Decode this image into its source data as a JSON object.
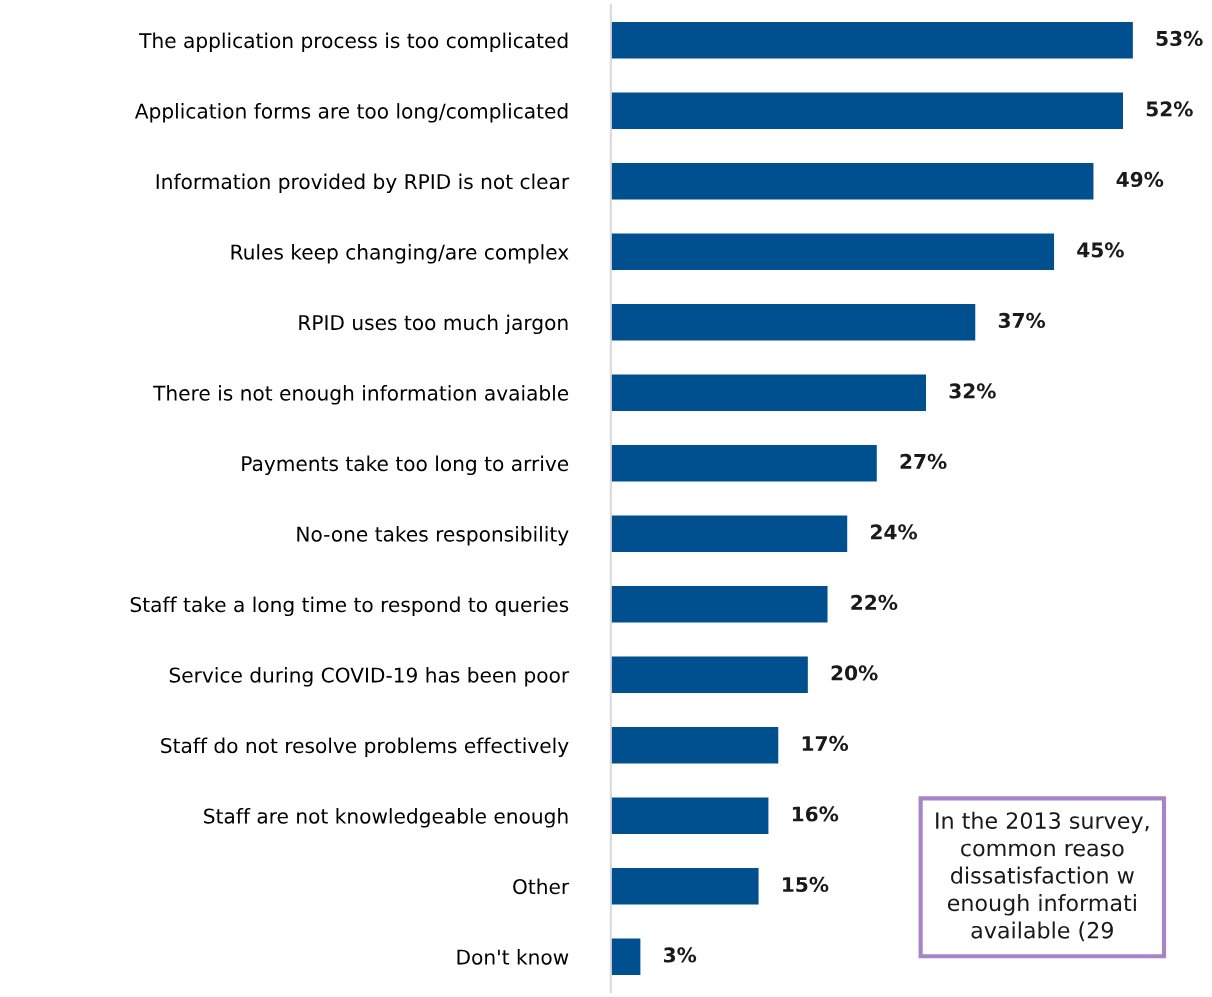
{
  "chart_data": {
    "type": "bar",
    "orientation": "horizontal",
    "categories": [
      "The application process is too complicated",
      "Application forms are too long/complicated",
      "Information provided by RPID is not clear",
      "Rules keep changing/are complex",
      "RPID uses too much jargon",
      "There is not enough information avaiable",
      "Payments take too long to arrive",
      "No-one takes responsibility",
      "Staff take a long time to respond to queries",
      "Service during COVID-19 has been poor",
      "Staff do not resolve problems effectively",
      "Staff are not knowledgeable enough",
      "Other",
      "Don't know"
    ],
    "values": [
      53,
      52,
      49,
      45,
      37,
      32,
      27,
      24,
      22,
      20,
      17,
      16,
      15,
      3
    ],
    "value_labels": [
      "53%",
      "52%",
      "49%",
      "45%",
      "37%",
      "32%",
      "27%",
      "24%",
      "22%",
      "20%",
      "17%",
      "16%",
      "15%",
      "3%"
    ],
    "color": "#00508f",
    "annotations": [
      "In the 2013 survey,\ncommon reaso\ndissatisfaction w\nenough informati\navailable (29"
    ]
  }
}
